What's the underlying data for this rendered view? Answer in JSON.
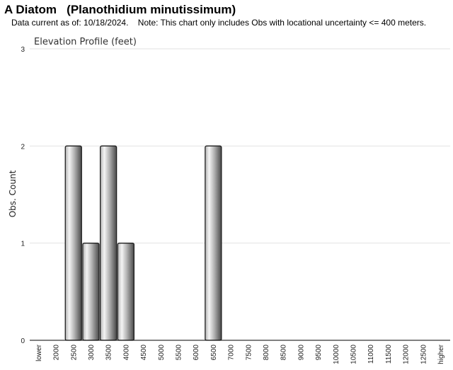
{
  "header": {
    "title": "A Diatom   (Planothidium minutissimum)",
    "subtitle": "Data current as of: 10/18/2024.    Note: This chart only includes Obs with locational uncertainty <= 400 meters."
  },
  "colors": {
    "bar_light": "#f4f4f4",
    "bar_mid": "#b4b4b4",
    "bar_dark": "#4a4a4a",
    "bar_stroke": "#1e1e1e",
    "grid": "#e2e2e2",
    "axis": "#000000"
  },
  "chart_data": {
    "type": "bar",
    "title": "Elevation Profile (feet)",
    "xlabel": "",
    "ylabel": "Obs. Count",
    "ylim": [
      0,
      3
    ],
    "yticks": [
      "0",
      "1",
      "2",
      "3"
    ],
    "grid": true,
    "legend": "none",
    "categories": [
      "lower",
      "2000",
      "2500",
      "3000",
      "3500",
      "4000",
      "4500",
      "5000",
      "5500",
      "6000",
      "6500",
      "7000",
      "7500",
      "8000",
      "8500",
      "9000",
      "9500",
      "10000",
      "10500",
      "11000",
      "11500",
      "12000",
      "12500",
      "higher"
    ],
    "values": [
      0,
      0,
      2,
      1,
      2,
      1,
      0,
      0,
      0,
      0,
      2,
      0,
      0,
      0,
      0,
      0,
      0,
      0,
      0,
      0,
      0,
      0,
      0,
      0
    ]
  }
}
